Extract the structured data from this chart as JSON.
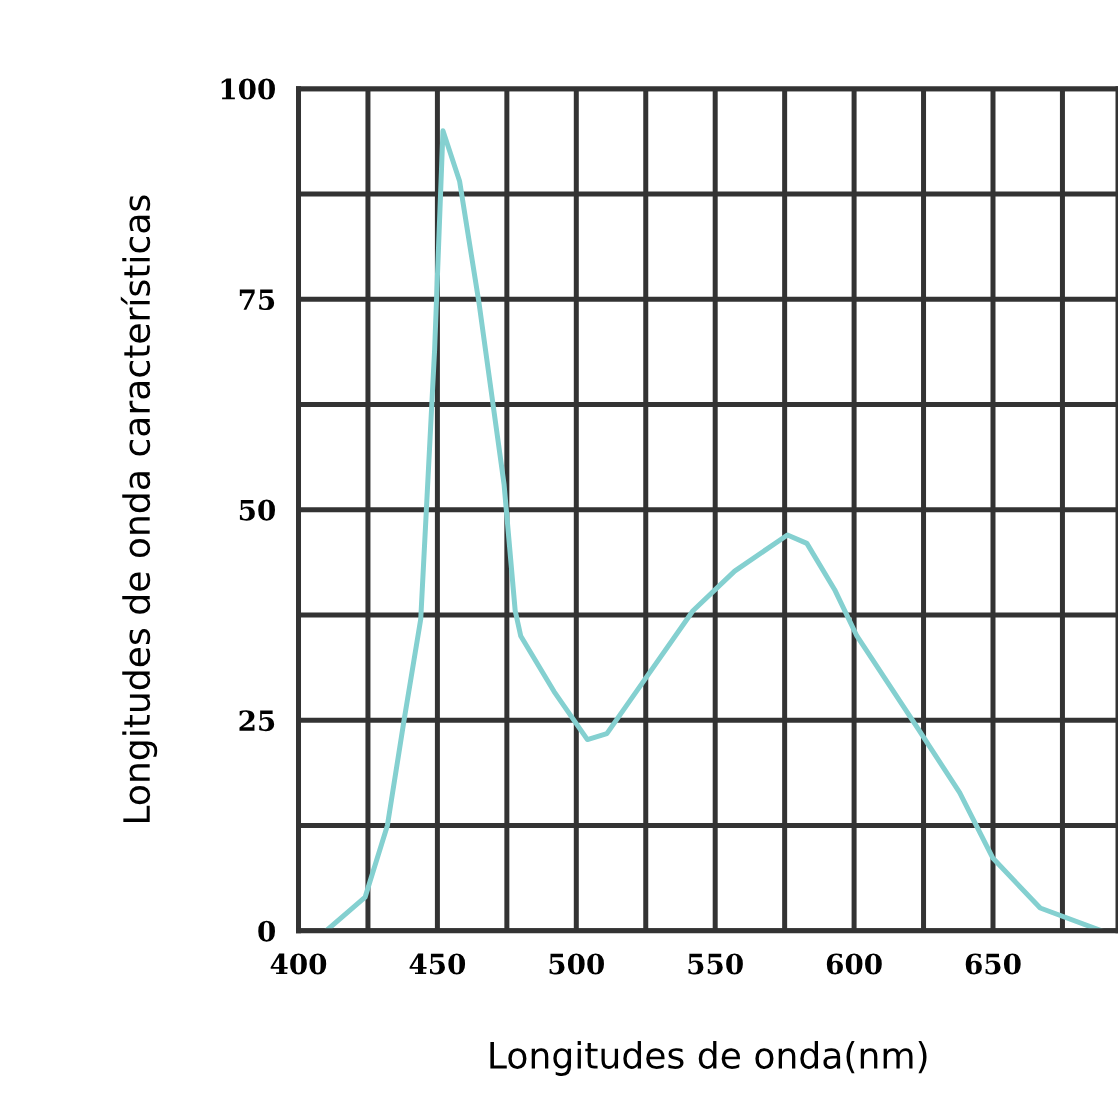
{
  "chart_data": {
    "type": "line",
    "xlabel": "Longitudes de onda(nm)",
    "ylabel": "Longitudes de onda características",
    "series": [
      {
        "color": "#84d0d0",
        "x": [
          410,
          424,
          432,
          438,
          444,
          449,
          452,
          458,
          465,
          474,
          478,
          480,
          492,
          504,
          511,
          525,
          542,
          557,
          576,
          583,
          593,
          601,
          622,
          638,
          650,
          667,
          689
        ],
        "values": [
          0,
          4,
          12.5,
          25,
          37,
          69,
          95,
          89,
          74.5,
          53,
          38,
          35,
          28.4,
          22.7,
          23.4,
          30,
          38,
          42.7,
          47,
          46,
          40.5,
          35,
          24.5,
          16.4,
          8.6,
          2.7,
          0
        ]
      }
    ],
    "xlim": [
      400,
      695
    ],
    "xticks": [
      400,
      {
        "value": 425,
        "label": null
      },
      450,
      {
        "value": 475,
        "label": null
      },
      500,
      {
        "value": 525,
        "label": null
      },
      550,
      {
        "value": 575,
        "label": null
      },
      600,
      {
        "value": 625,
        "label": null
      },
      650,
      {
        "value": 675,
        "label": null
      }
    ],
    "ylim": [
      0,
      100
    ],
    "yticks": [
      0,
      {
        "value": 12.5,
        "label": null
      },
      25,
      {
        "value": 37.5,
        "label": null
      },
      50,
      {
        "value": 62.5,
        "label": null
      },
      75,
      {
        "value": 87.5,
        "label": null
      },
      100
    ],
    "grid": true,
    "legend": false,
    "marker": "none",
    "line_style": "solid"
  }
}
